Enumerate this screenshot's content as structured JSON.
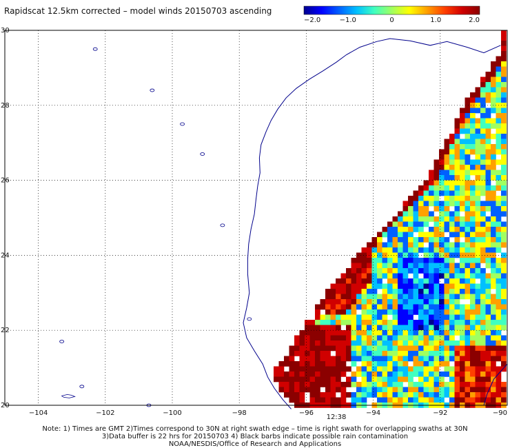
{
  "title": "Rapidscat 12.5km corrected – model winds 20150703 ascending",
  "colorbar": {
    "ticks": [
      "−2.0",
      "−1.0",
      "0",
      "1.0",
      "2.0"
    ],
    "tick_values": [
      -2.0,
      -1.0,
      0,
      1.0,
      2.0
    ],
    "range": [
      -2.0,
      2.0
    ]
  },
  "axes": {
    "lon_labels": [
      "−104",
      "−102",
      "−100",
      "−98",
      "−96",
      "−94",
      "−92",
      "−90"
    ],
    "lon_values": [
      -104,
      -102,
      -100,
      -98,
      -96,
      -94,
      -92,
      -90
    ],
    "lat_labels": [
      "20",
      "22",
      "24",
      "26",
      "28",
      "30"
    ],
    "lat_values": [
      20,
      22,
      24,
      26,
      28,
      30
    ],
    "lon_range": [
      -105,
      -90
    ],
    "lat_range": [
      20,
      30
    ],
    "grid": "dotted"
  },
  "time_label": "12:38",
  "notes": [
    "Note: 1) Times are GMT 2)Times correspond to 30N at right swath edge – time is right swath for overlapping swaths at 30N",
    "3)Data buffer is 22 hrs for 20150703 4) Black barbs indicate possible rain contamination",
    "NOAA/NESDIS/Office of Research and Applications"
  ],
  "colors": {
    "coast": "#00008b",
    "grid": "#000000",
    "time_label": "#8b1a1a",
    "palette": [
      "#00008f",
      "#0000ff",
      "#0060ff",
      "#00c0ff",
      "#40ffc0",
      "#a0ff60",
      "#ffff00",
      "#ffa000",
      "#ff4000",
      "#d00000",
      "#8b0000"
    ]
  }
}
